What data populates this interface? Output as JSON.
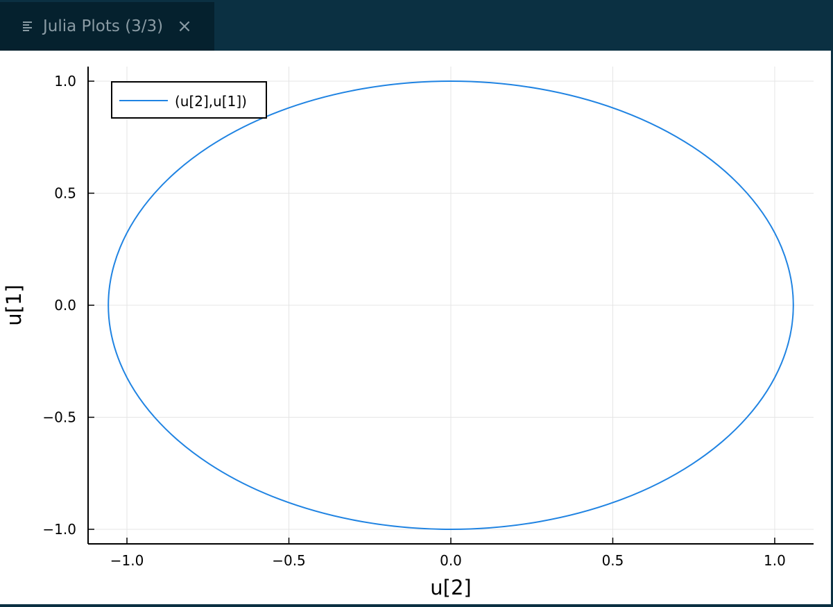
{
  "tab": {
    "title": "Julia Plots (3/3)",
    "menu_icon": "menu-lines-icon",
    "close_glyph": "×",
    "close_icon": "close-icon"
  },
  "colors": {
    "tabbar_bg": "#0b3042",
    "tab_active_bg": "#05212e",
    "series": "#1f83e2",
    "grid": "#e5e5e5"
  },
  "chart_data": {
    "type": "line",
    "xlabel": "u[2]",
    "ylabel": "u[1]",
    "xlim": [
      -1.12,
      1.12
    ],
    "ylim": [
      -1.065,
      1.065
    ],
    "xticks": [
      -1.0,
      -0.5,
      0.0,
      0.5,
      1.0
    ],
    "xtick_labels": [
      "−1.0",
      "−0.5",
      "0.0",
      "0.5",
      "1.0"
    ],
    "yticks": [
      -1.0,
      -0.5,
      0.0,
      0.5,
      1.0
    ],
    "ytick_labels": [
      "−1.0",
      "−0.5",
      "0.0",
      "0.5",
      "1.0"
    ],
    "grid": true,
    "legend_position": "top-left",
    "series": [
      {
        "name": "(u[2],u[1])",
        "color": "#1f83e2",
        "x": [
          0.0,
          0.2733,
          0.5285,
          0.7468,
          0.9146,
          1.0208,
          1.0575,
          1.0208,
          0.9146,
          0.7468,
          0.5285,
          0.2733,
          0.0,
          -0.2733,
          -0.5285,
          -0.7468,
          -0.9146,
          -1.0208,
          -1.0575,
          -1.0208,
          -0.9146,
          -0.7468,
          -0.5285,
          -0.2733,
          0.0
        ],
        "y": [
          1.0,
          0.9659,
          0.866,
          0.7071,
          0.5,
          0.2588,
          0.0,
          -0.2588,
          -0.5,
          -0.7071,
          -0.866,
          -0.9659,
          -1.0,
          -0.9659,
          -0.866,
          -0.7071,
          -0.5,
          -0.2588,
          0.0,
          0.2588,
          0.5,
          0.7071,
          0.866,
          0.9659,
          1.0
        ]
      }
    ]
  }
}
